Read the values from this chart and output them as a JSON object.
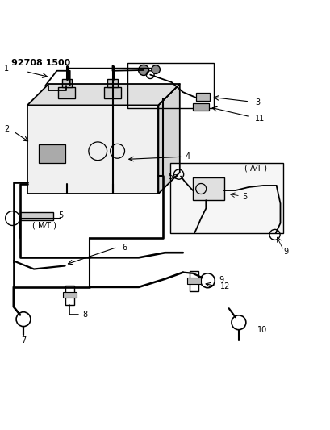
{
  "title": "92708 1500",
  "background_color": "#ffffff",
  "line_color": "#000000",
  "label_color": "#000000",
  "figsize": [
    4.09,
    5.33
  ],
  "dpi": 100
}
